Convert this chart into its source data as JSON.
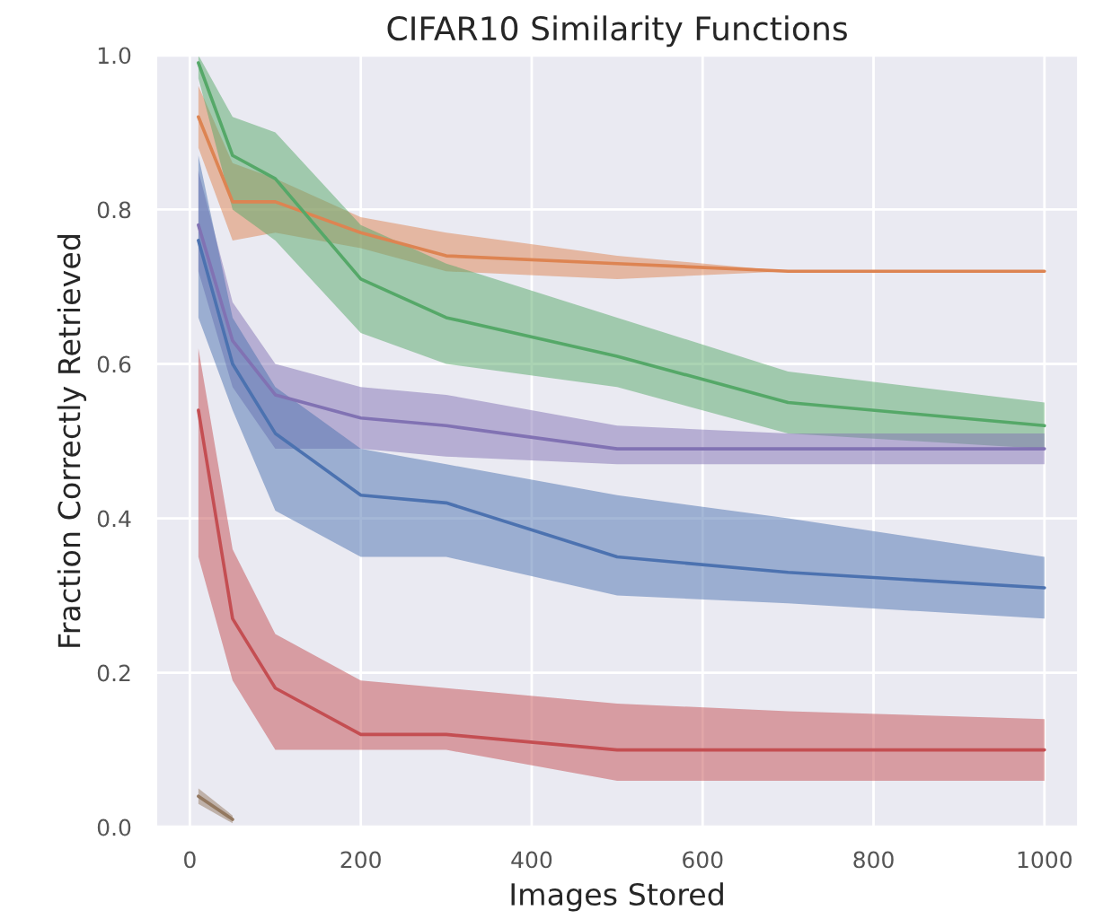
{
  "chart_data": {
    "type": "line",
    "title": "CIFAR10 Similarity Functions",
    "xlabel": "Images Stored",
    "ylabel": "Fraction Correctly Retrieved",
    "x": [
      10,
      50,
      100,
      200,
      300,
      500,
      700,
      1000
    ],
    "series": [
      {
        "color": "#dd8452",
        "values": [
          0.92,
          0.81,
          0.81,
          0.77,
          0.74,
          0.73,
          0.72,
          0.72
        ],
        "lower": [
          0.88,
          0.76,
          0.77,
          0.75,
          0.72,
          0.71,
          0.72,
          0.72
        ],
        "upper": [
          0.96,
          0.86,
          0.84,
          0.79,
          0.77,
          0.74,
          0.72,
          0.72
        ]
      },
      {
        "color": "#55a868",
        "values": [
          0.99,
          0.87,
          0.84,
          0.71,
          0.66,
          0.61,
          0.55,
          0.52
        ],
        "lower": [
          0.97,
          0.8,
          0.76,
          0.64,
          0.6,
          0.57,
          0.51,
          0.49
        ],
        "upper": [
          1.0,
          0.92,
          0.9,
          0.78,
          0.73,
          0.66,
          0.59,
          0.55
        ]
      },
      {
        "color": "#8172b3",
        "values": [
          0.78,
          0.63,
          0.56,
          0.53,
          0.52,
          0.49,
          0.49,
          0.49
        ],
        "lower": [
          0.72,
          0.57,
          0.49,
          0.49,
          0.48,
          0.47,
          0.47,
          0.47
        ],
        "upper": [
          0.85,
          0.68,
          0.6,
          0.57,
          0.56,
          0.52,
          0.51,
          0.51
        ]
      },
      {
        "color": "#4c72b0",
        "values": [
          0.76,
          0.6,
          0.51,
          0.43,
          0.42,
          0.35,
          0.33,
          0.31
        ],
        "lower": [
          0.66,
          0.54,
          0.41,
          0.35,
          0.35,
          0.3,
          0.29,
          0.27
        ],
        "upper": [
          0.87,
          0.66,
          0.57,
          0.49,
          0.47,
          0.43,
          0.4,
          0.35
        ]
      },
      {
        "color": "#c44e52",
        "values": [
          0.54,
          0.27,
          0.18,
          0.12,
          0.12,
          0.1,
          0.1,
          0.1
        ],
        "lower": [
          0.35,
          0.19,
          0.1,
          0.1,
          0.1,
          0.06,
          0.06,
          0.06
        ],
        "upper": [
          0.62,
          0.36,
          0.25,
          0.19,
          0.18,
          0.16,
          0.15,
          0.14
        ]
      },
      {
        "color": "#937860",
        "x": [
          10,
          50
        ],
        "values": [
          0.04,
          0.01
        ],
        "lower": [
          0.03,
          0.005
        ],
        "upper": [
          0.05,
          0.015
        ]
      }
    ],
    "xlim": [
      -40,
      1040
    ],
    "ylim": [
      0.0,
      1.0
    ],
    "xticks": [
      0,
      200,
      400,
      600,
      800,
      1000
    ],
    "yticks": [
      {
        "value": 0.0,
        "label": "0.0"
      },
      {
        "value": 0.2,
        "label": "0.2"
      },
      {
        "value": 0.4,
        "label": "0.4"
      },
      {
        "value": 0.6,
        "label": "0.6"
      },
      {
        "value": 0.8,
        "label": "0.8"
      },
      {
        "value": 1.0,
        "label": "1.0"
      }
    ],
    "grid": true
  }
}
